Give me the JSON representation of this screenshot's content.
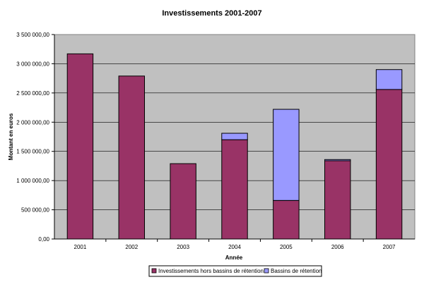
{
  "chart_data": {
    "type": "bar",
    "stacked": true,
    "title": "Investissements 2001-2007",
    "xlabel": "Année",
    "ylabel": "Montant en euros",
    "categories": [
      "2001",
      "2002",
      "2003",
      "2004",
      "2005",
      "2006",
      "2007"
    ],
    "series": [
      {
        "name": "Investissements hors bassins de rétention",
        "color": "#993366",
        "values": [
          3170000,
          2790000,
          1290000,
          1700000,
          660000,
          1340000,
          2560000
        ]
      },
      {
        "name": "Bassins de rétention",
        "color": "#9999ff",
        "values": [
          0,
          0,
          0,
          110000,
          1560000,
          20000,
          340000
        ]
      }
    ],
    "ylim": [
      0,
      3500000
    ],
    "yticks": [
      0,
      500000,
      1000000,
      1500000,
      2000000,
      2500000,
      3000000,
      3500000
    ],
    "ytick_labels": [
      "0,00",
      "500 000,00",
      "1 000 000,00",
      "1 500 000,00",
      "2 000 000,00",
      "2 500 000,00",
      "3 000 000,00",
      "3 500 000,00"
    ],
    "grid": true,
    "plot_background": "#c0c0c0",
    "legend_position": "bottom"
  }
}
